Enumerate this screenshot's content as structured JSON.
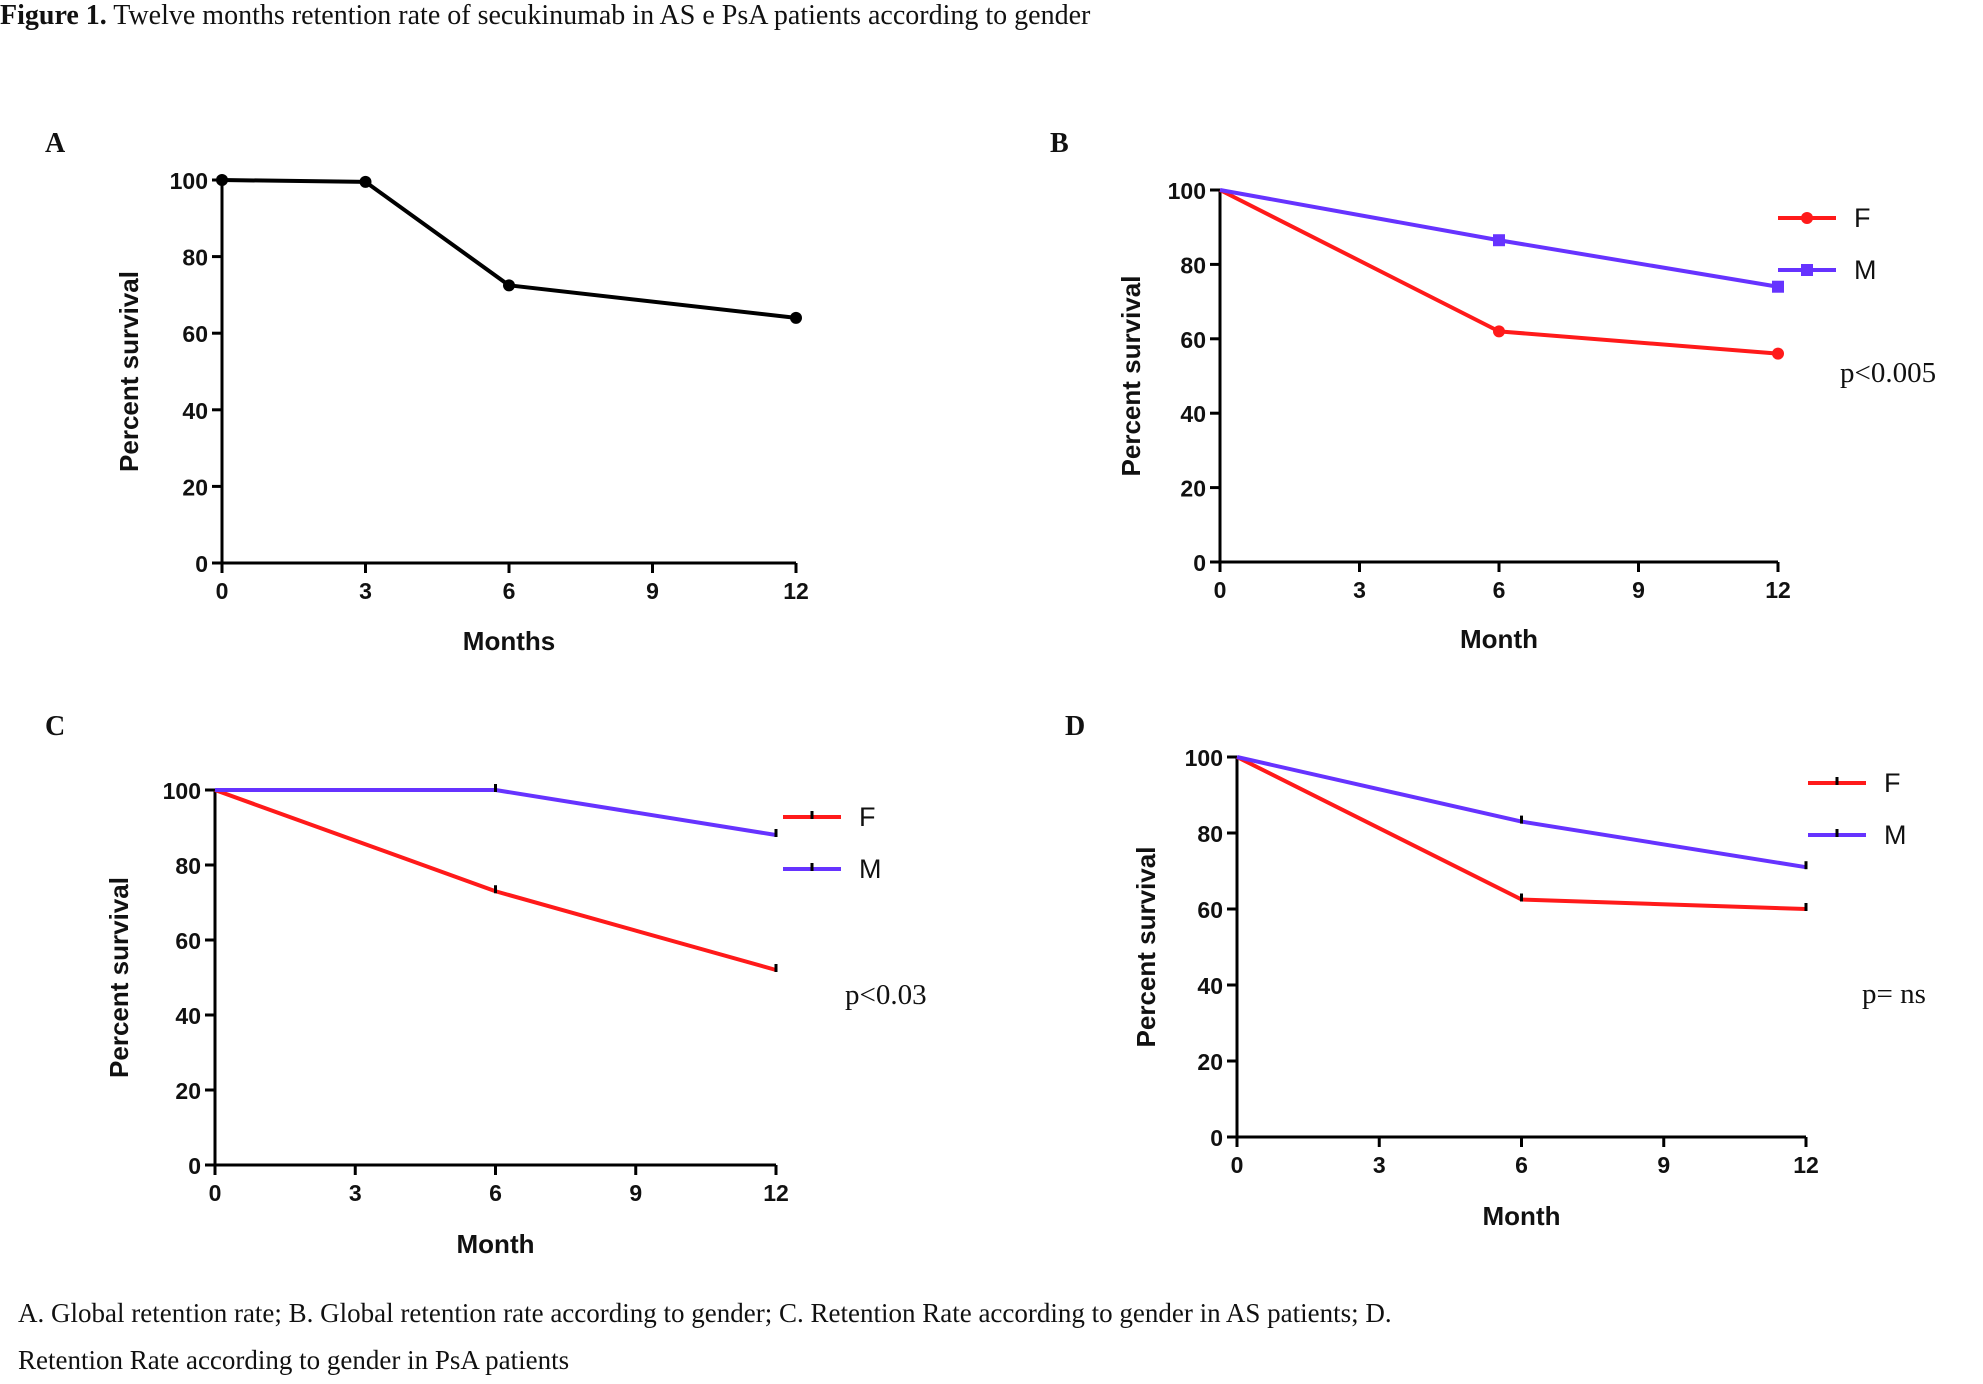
{
  "figure": {
    "title_label": "Figure 1.",
    "title_text": " Twelve months retention rate of secukinumab in AS e PsA patients according to gender",
    "caption_line1": "A. Global retention rate; B. Global retention rate according to gender; C. Retention Rate according to gender in AS patients; D.",
    "caption_line2": "Retention Rate according to gender in PsA patients"
  },
  "colors": {
    "F": "#ff1a1a",
    "M": "#6633ff",
    "black": "#000000"
  },
  "chart_data": [
    {
      "panel": "A",
      "type": "line",
      "xlabel": "Months",
      "ylabel": "Percent survival",
      "xlim": [
        0,
        12
      ],
      "ylim": [
        0,
        100
      ],
      "xticks": [
        0,
        3,
        6,
        9,
        12
      ],
      "yticks": [
        0,
        20,
        40,
        60,
        80,
        100
      ],
      "annotation": "",
      "series": [
        {
          "name": "",
          "color": "#000000",
          "marker": "circle",
          "points": [
            [
              0,
              100
            ],
            [
              3,
              99.5
            ],
            [
              6,
              72.5
            ],
            [
              12,
              64
            ]
          ]
        }
      ]
    },
    {
      "panel": "B",
      "type": "line",
      "xlabel": "Month",
      "ylabel": "Percent survival",
      "xlim": [
        0,
        12
      ],
      "ylim": [
        0,
        100
      ],
      "xticks": [
        0,
        3,
        6,
        9,
        12
      ],
      "yticks": [
        0,
        20,
        40,
        60,
        80,
        100
      ],
      "annotation": "p<0.005",
      "series": [
        {
          "name": "F",
          "color": "#ff1a1a",
          "marker": "circle",
          "points": [
            [
              0,
              100
            ],
            [
              6,
              62
            ],
            [
              12,
              56
            ]
          ]
        },
        {
          "name": "M",
          "color": "#6633ff",
          "marker": "square",
          "points": [
            [
              0,
              100
            ],
            [
              6,
              86.5
            ],
            [
              12,
              74
            ]
          ]
        }
      ]
    },
    {
      "panel": "C",
      "type": "line",
      "xlabel": "Month",
      "ylabel": "Percent survival",
      "xlim": [
        0,
        12
      ],
      "ylim": [
        0,
        100
      ],
      "xticks": [
        0,
        3,
        6,
        9,
        12
      ],
      "yticks": [
        0,
        20,
        40,
        60,
        80,
        100
      ],
      "annotation": "p<0.03",
      "series": [
        {
          "name": "F",
          "color": "#ff1a1a",
          "marker": "tick",
          "points": [
            [
              0,
              100
            ],
            [
              6,
              73
            ],
            [
              12,
              52
            ]
          ]
        },
        {
          "name": "M",
          "color": "#6633ff",
          "marker": "tick",
          "points": [
            [
              0,
              100
            ],
            [
              6,
              100
            ],
            [
              12,
              88
            ]
          ]
        }
      ]
    },
    {
      "panel": "D",
      "type": "line",
      "xlabel": "Month",
      "ylabel": "Percent survival",
      "xlim": [
        0,
        12
      ],
      "ylim": [
        0,
        100
      ],
      "xticks": [
        0,
        3,
        6,
        9,
        12
      ],
      "yticks": [
        0,
        20,
        40,
        60,
        80,
        100
      ],
      "annotation": "p= ns",
      "series": [
        {
          "name": "F",
          "color": "#ff1a1a",
          "marker": "tick",
          "points": [
            [
              0,
              100
            ],
            [
              6,
              62.5
            ],
            [
              12,
              60
            ]
          ]
        },
        {
          "name": "M",
          "color": "#6633ff",
          "marker": "tick",
          "points": [
            [
              0,
              100
            ],
            [
              6,
              83
            ],
            [
              12,
              71
            ]
          ]
        }
      ]
    }
  ]
}
